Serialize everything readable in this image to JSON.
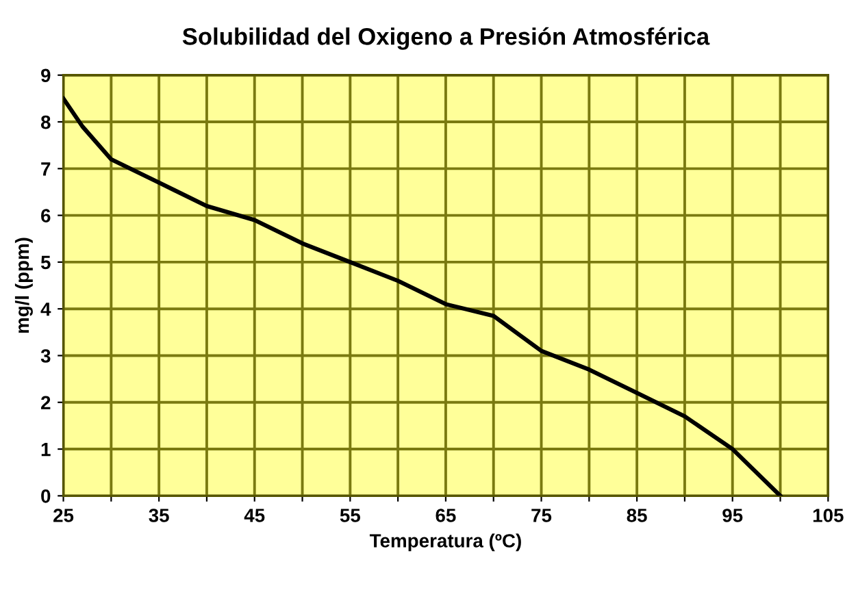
{
  "chart_data": {
    "type": "line",
    "title": "Solubilidad del Oxigeno a Presión Atmosférica",
    "xlabel": "Temperatura (ºC)",
    "ylabel": "mg/l (ppm)",
    "x": [
      25,
      27,
      30,
      35,
      40,
      45,
      50,
      55,
      60,
      65,
      70,
      75,
      80,
      85,
      90,
      95,
      100
    ],
    "series": [
      {
        "color": "#000000",
        "values": [
          8.5,
          7.9,
          7.2,
          6.7,
          6.2,
          5.9,
          5.4,
          5.0,
          4.6,
          4.1,
          3.85,
          3.1,
          2.7,
          2.2,
          1.7,
          1.0,
          0
        ]
      }
    ],
    "xlim": [
      25,
      105
    ],
    "ylim": [
      0,
      9
    ],
    "xticks": [
      25,
      {
        "value": 30,
        "label": null
      },
      35,
      {
        "value": 40,
        "label": null
      },
      45,
      {
        "value": 50,
        "label": null
      },
      55,
      {
        "value": 60,
        "label": null
      },
      65,
      {
        "value": 70,
        "label": null
      },
      75,
      {
        "value": 80,
        "label": null
      },
      85,
      {
        "value": 90,
        "label": null
      },
      95,
      {
        "value": 100,
        "label": null
      },
      105
    ],
    "yticks": [
      0,
      1,
      2,
      3,
      4,
      5,
      6,
      7,
      8,
      9
    ],
    "grid": true,
    "legend": false,
    "marker": "none",
    "line_style": "solid"
  }
}
